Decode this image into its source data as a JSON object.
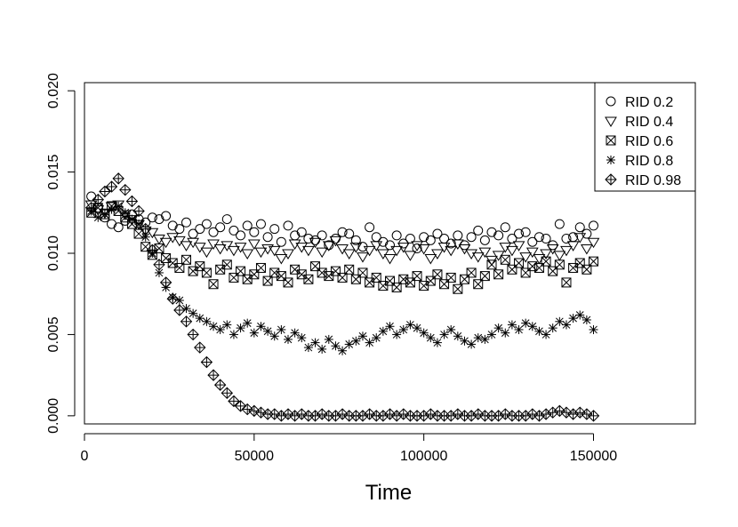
{
  "chart_data": {
    "type": "scatter",
    "title": "",
    "xlabel": "Time",
    "ylabel": "",
    "xlim": [
      0,
      180000
    ],
    "ylim": [
      -0.0005,
      0.0205
    ],
    "xticks": [
      0,
      50000,
      100000,
      150000
    ],
    "xtick_labels": [
      "0",
      "50000",
      "100000",
      "150000"
    ],
    "yticks": [
      0.0,
      0.005,
      0.01,
      0.015,
      0.02
    ],
    "ytick_labels": [
      "0.000",
      "0.005",
      "0.010",
      "0.015",
      "0.020"
    ],
    "grid": false,
    "legend_position": "top-right",
    "x": [
      2000,
      4000,
      6000,
      8000,
      10000,
      12000,
      14000,
      16000,
      18000,
      20000,
      22000,
      24000,
      26000,
      28000,
      30000,
      32000,
      34000,
      36000,
      38000,
      40000,
      42000,
      44000,
      46000,
      48000,
      50000,
      52000,
      54000,
      56000,
      58000,
      60000,
      62000,
      64000,
      66000,
      68000,
      70000,
      72000,
      74000,
      76000,
      78000,
      80000,
      82000,
      84000,
      86000,
      88000,
      90000,
      92000,
      94000,
      96000,
      98000,
      100000,
      102000,
      104000,
      106000,
      108000,
      110000,
      112000,
      114000,
      116000,
      118000,
      120000,
      122000,
      124000,
      126000,
      128000,
      130000,
      132000,
      134000,
      136000,
      138000,
      140000,
      142000,
      144000,
      146000,
      148000,
      150000
    ],
    "series": [
      {
        "name": "RID 0.2",
        "marker": "circle",
        "values": [
          0.0135,
          0.0128,
          0.0122,
          0.0118,
          0.0116,
          0.012,
          0.0124,
          0.0121,
          0.0119,
          0.0122,
          0.0121,
          0.0123,
          0.0117,
          0.0115,
          0.0119,
          0.0112,
          0.0115,
          0.0118,
          0.0113,
          0.0116,
          0.0121,
          0.0114,
          0.0111,
          0.0117,
          0.0113,
          0.0118,
          0.011,
          0.0115,
          0.0107,
          0.0117,
          0.0111,
          0.0113,
          0.0109,
          0.0108,
          0.0111,
          0.0105,
          0.0109,
          0.0113,
          0.0112,
          0.0108,
          0.0104,
          0.0116,
          0.011,
          0.0107,
          0.0105,
          0.0111,
          0.0106,
          0.0109,
          0.0103,
          0.011,
          0.0108,
          0.0112,
          0.0109,
          0.0106,
          0.0111,
          0.0105,
          0.011,
          0.0114,
          0.0108,
          0.0113,
          0.0111,
          0.0116,
          0.0109,
          0.0112,
          0.0113,
          0.0107,
          0.011,
          0.0109,
          0.0105,
          0.0118,
          0.0109,
          0.011,
          0.0116,
          0.0112,
          0.0117
        ]
      },
      {
        "name": "RID 0.4",
        "marker": "triangle-down",
        "values": [
          0.013,
          0.0127,
          0.0125,
          0.0129,
          0.013,
          0.0124,
          0.0121,
          0.0118,
          0.0114,
          0.0113,
          0.0109,
          0.0107,
          0.011,
          0.0108,
          0.0105,
          0.0107,
          0.0104,
          0.0101,
          0.0106,
          0.0103,
          0.0105,
          0.0102,
          0.0104,
          0.01,
          0.0106,
          0.0101,
          0.0103,
          0.0102,
          0.0097,
          0.01,
          0.0106,
          0.0104,
          0.0102,
          0.0107,
          0.0101,
          0.0105,
          0.0108,
          0.0103,
          0.01,
          0.0104,
          0.0098,
          0.0102,
          0.0105,
          0.01,
          0.0097,
          0.0102,
          0.0104,
          0.0099,
          0.0105,
          0.0103,
          0.0097,
          0.01,
          0.0104,
          0.0102,
          0.0106,
          0.0103,
          0.01,
          0.0098,
          0.0101,
          0.0096,
          0.0099,
          0.0104,
          0.0102,
          0.0105,
          0.0098,
          0.0101,
          0.0097,
          0.01,
          0.0103,
          0.0099,
          0.0102,
          0.0105,
          0.011,
          0.0103,
          0.0107
        ]
      },
      {
        "name": "RID 0.6",
        "marker": "box-x",
        "values": [
          0.0125,
          0.0128,
          0.0124,
          0.0129,
          0.0126,
          0.0122,
          0.0118,
          0.0112,
          0.0104,
          0.0099,
          0.0103,
          0.0097,
          0.0094,
          0.0091,
          0.0096,
          0.0089,
          0.0092,
          0.0088,
          0.0081,
          0.009,
          0.0093,
          0.0085,
          0.0089,
          0.0084,
          0.0087,
          0.0091,
          0.0083,
          0.0088,
          0.0086,
          0.0082,
          0.009,
          0.0087,
          0.0084,
          0.0092,
          0.0088,
          0.0086,
          0.0089,
          0.0085,
          0.009,
          0.0084,
          0.0088,
          0.0082,
          0.0085,
          0.008,
          0.0083,
          0.0079,
          0.0084,
          0.0082,
          0.0086,
          0.008,
          0.0083,
          0.0087,
          0.0081,
          0.0085,
          0.0078,
          0.0084,
          0.0088,
          0.0081,
          0.0086,
          0.0093,
          0.0087,
          0.0096,
          0.009,
          0.0094,
          0.0088,
          0.0092,
          0.0091,
          0.0095,
          0.0089,
          0.0093,
          0.0082,
          0.0091,
          0.0094,
          0.009,
          0.0095
        ]
      },
      {
        "name": "RID 0.8",
        "marker": "asterisk",
        "values": [
          0.0126,
          0.0122,
          0.0124,
          0.0127,
          0.0129,
          0.0125,
          0.0121,
          0.0118,
          0.011,
          0.01,
          0.0088,
          0.0079,
          0.0073,
          0.0071,
          0.0066,
          0.0063,
          0.006,
          0.0058,
          0.0055,
          0.0053,
          0.0056,
          0.005,
          0.0054,
          0.0057,
          0.0051,
          0.0055,
          0.0052,
          0.0049,
          0.0053,
          0.0047,
          0.0051,
          0.0048,
          0.0042,
          0.0045,
          0.0041,
          0.0047,
          0.0043,
          0.004,
          0.0044,
          0.0046,
          0.0049,
          0.0045,
          0.0048,
          0.0052,
          0.0055,
          0.005,
          0.0053,
          0.0056,
          0.0054,
          0.0051,
          0.0048,
          0.0045,
          0.005,
          0.0053,
          0.0049,
          0.0046,
          0.0044,
          0.0048,
          0.0047,
          0.005,
          0.0054,
          0.0051,
          0.0056,
          0.0053,
          0.0057,
          0.0055,
          0.0052,
          0.005,
          0.0054,
          0.0058,
          0.0056,
          0.006,
          0.0062,
          0.0059,
          0.0053
        ]
      },
      {
        "name": "RID 0.98",
        "marker": "diamond-plus",
        "values": [
          0.0128,
          0.0133,
          0.0138,
          0.0141,
          0.0146,
          0.0139,
          0.0132,
          0.0126,
          0.0115,
          0.0102,
          0.0093,
          0.0082,
          0.0072,
          0.0065,
          0.0058,
          0.005,
          0.0042,
          0.0033,
          0.0025,
          0.0019,
          0.0014,
          0.0009,
          0.0006,
          0.0004,
          0.0003,
          0.0002,
          0.0001,
          0.0001,
          0.0,
          0.0001,
          0.0,
          0.0001,
          0.0,
          0.0,
          0.0001,
          0.0,
          0.0,
          0.0001,
          0.0,
          0.0,
          0.0,
          0.0001,
          0.0,
          0.0,
          0.0001,
          0.0,
          0.0001,
          0.0,
          0.0,
          0.0,
          0.0001,
          0.0,
          0.0,
          0.0,
          0.0001,
          0.0,
          0.0,
          0.0001,
          0.0,
          0.0,
          0.0,
          0.0001,
          0.0,
          0.0,
          0.0,
          0.0001,
          0.0,
          0.0001,
          0.0002,
          0.0003,
          0.0002,
          0.0001,
          0.0002,
          0.0001,
          0.0
        ]
      }
    ]
  }
}
